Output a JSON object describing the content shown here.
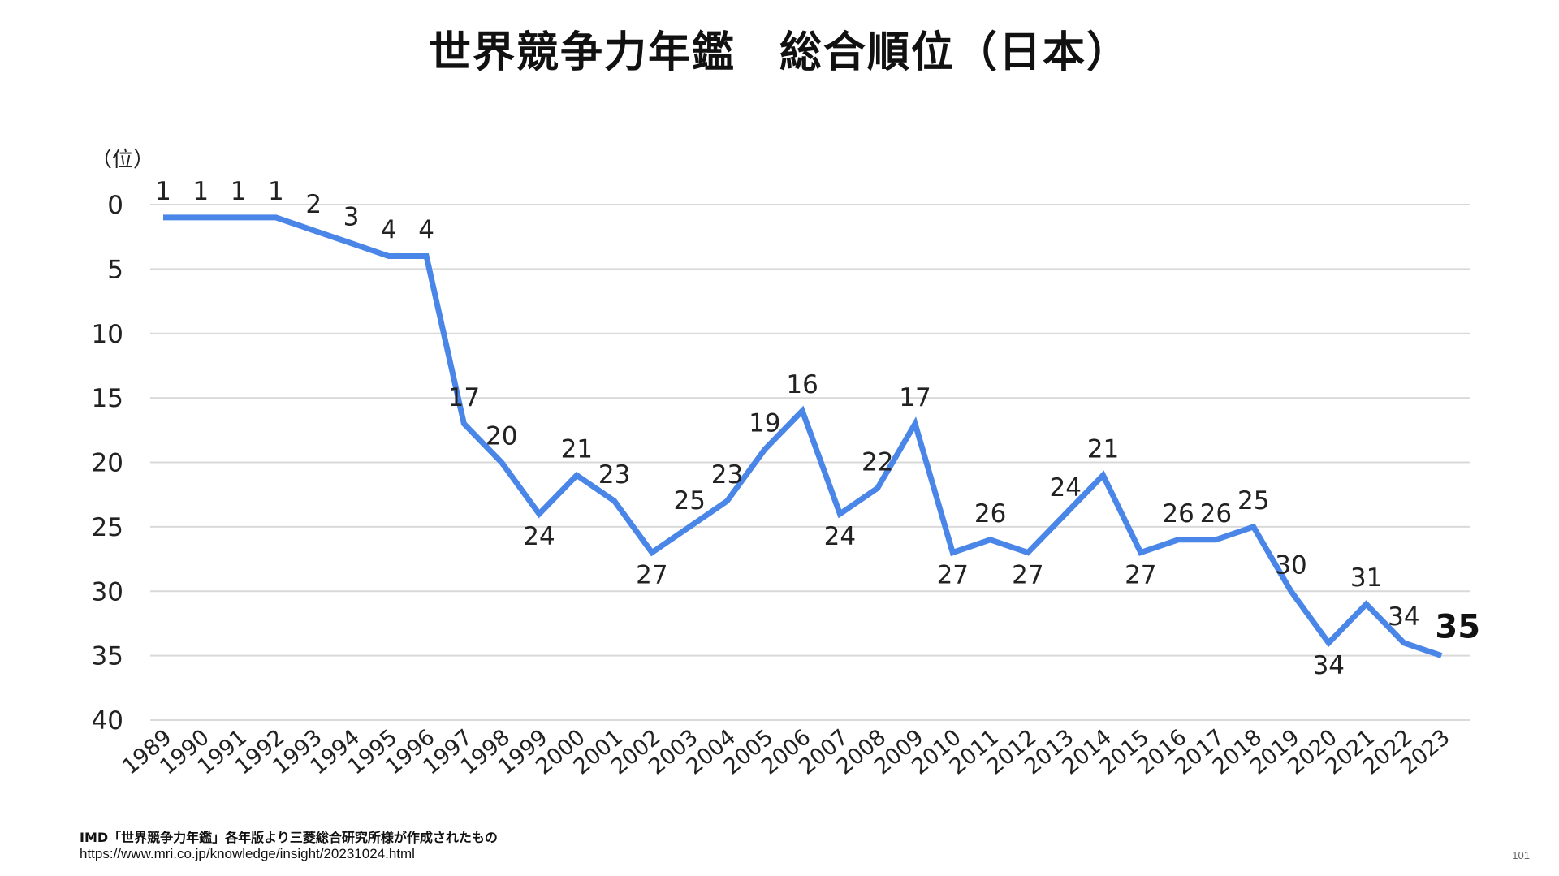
{
  "slide": {
    "title": "世界競争力年鑑　総合順位（日本）",
    "source_line_1": "IMD「世界競争力年鑑」各年版より三菱総合研究所様が作成されたもの",
    "source_line_2": "https://www.mri.co.jp/knowledge/insight/20231024.html",
    "page_number": "101"
  },
  "chart_data": {
    "type": "line",
    "title": "世界競争力年鑑　総合順位（日本）",
    "y_unit_label": "（位）",
    "y_axis_inverted": true,
    "ylim": [
      0,
      40
    ],
    "y_ticks": [
      0,
      5,
      10,
      15,
      20,
      25,
      30,
      35,
      40
    ],
    "grid": true,
    "line_color": "#4a86e8",
    "categories": [
      "1989",
      "1990",
      "1991",
      "1992",
      "1993",
      "1994",
      "1995",
      "1996",
      "1997",
      "1998",
      "1999",
      "2000",
      "2001",
      "2002",
      "2003",
      "2004",
      "2005",
      "2006",
      "2007",
      "2008",
      "2009",
      "2010",
      "2011",
      "2012",
      "2013",
      "2014",
      "2015",
      "2016",
      "2017",
      "2018",
      "2019",
      "2020",
      "2021",
      "2022",
      "2023"
    ],
    "series": [
      {
        "values": [
          1,
          1,
          1,
          1,
          2,
          3,
          4,
          4,
          17,
          20,
          24,
          21,
          23,
          27,
          25,
          23,
          19,
          16,
          24,
          22,
          17,
          27,
          26,
          27,
          24,
          21,
          27,
          26,
          26,
          25,
          30,
          34,
          31,
          34,
          35
        ]
      }
    ],
    "highlighted_label": "2023"
  }
}
